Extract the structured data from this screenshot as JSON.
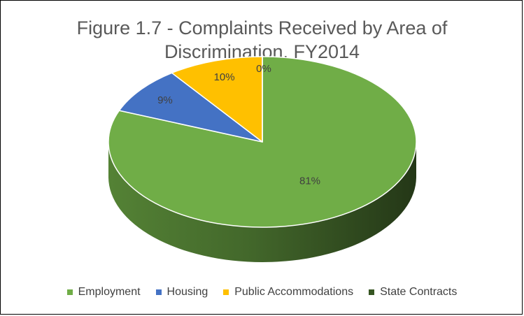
{
  "chart_data": {
    "type": "pie",
    "title_line1": "Figure 1.7 - Complaints Received by Area of",
    "title_line2": "Discrimination, FY2014",
    "categories": [
      "Employment",
      "Housing",
      "Public Accommodations",
      "State Contracts"
    ],
    "values": [
      81,
      9,
      10,
      0
    ],
    "labels": [
      "81%",
      "9%",
      "10%",
      "0%"
    ],
    "colors": [
      "#70AD47",
      "#4472C4",
      "#FFC000",
      "#375623"
    ],
    "style": "3d",
    "legend_position": "bottom"
  }
}
